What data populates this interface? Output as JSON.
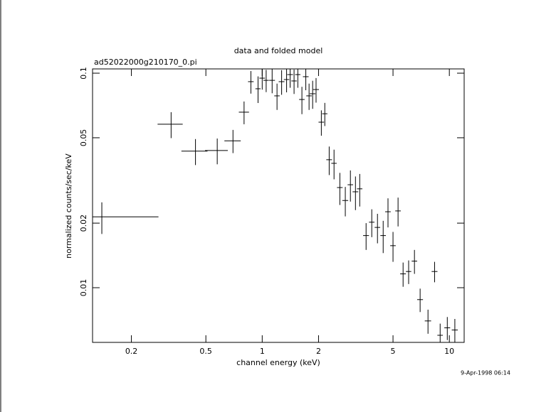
{
  "chart_data": {
    "type": "errorbar",
    "title": "data and folded model",
    "subtitle": "ad52022000g210170_0.pi",
    "x_label": "channel energy (keV)",
    "y_label": "normalized counts/sec/keV",
    "timestamp": "9-Apr-1998 06:14",
    "log_x": true,
    "log_y": true,
    "color": "#000000",
    "xlim": [
      0.124,
      12.0
    ],
    "ylim": [
      0.00556,
      0.1047
    ],
    "xticks": [
      0.2,
      0.5,
      1,
      2,
      5,
      10
    ],
    "yticks": [
      0.01,
      0.02,
      0.05,
      0.1
    ],
    "series": [
      {
        "x": [
          0.139,
          0.326,
          0.44,
          0.575,
          0.698,
          0.8,
          0.87,
          0.95,
          1.0,
          1.05,
          1.13,
          1.2,
          1.27,
          1.35,
          1.41,
          1.48,
          1.55,
          1.63,
          1.71,
          1.78,
          1.86,
          1.94,
          2.07,
          2.16,
          2.28,
          2.42,
          2.6,
          2.78,
          2.96,
          3.15,
          3.32,
          3.59,
          3.85,
          4.13,
          4.43,
          4.7,
          5.0,
          5.32,
          5.66,
          6.06,
          6.51,
          6.98,
          7.69,
          8.34,
          8.93,
          9.75,
          10.7
        ],
        "xerr": [
          0.14,
          0.05,
          0.07,
          0.08,
          0.07,
          0.05,
          0.03,
          0.03,
          0.035,
          0.035,
          0.04,
          0.04,
          0.045,
          0.045,
          0.05,
          0.05,
          0.05,
          0.055,
          0.06,
          0.06,
          0.065,
          0.07,
          0.07,
          0.07,
          0.08,
          0.08,
          0.09,
          0.1,
          0.1,
          0.11,
          0.11,
          0.13,
          0.13,
          0.14,
          0.15,
          0.16,
          0.17,
          0.18,
          0.2,
          0.2,
          0.22,
          0.25,
          0.3,
          0.3,
          0.3,
          0.35,
          0.4
        ],
        "y": [
          0.0214,
          0.0578,
          0.0433,
          0.0436,
          0.0484,
          0.0658,
          0.0913,
          0.0846,
          0.0948,
          0.0926,
          0.0926,
          0.0784,
          0.0913,
          0.0934,
          0.0985,
          0.092,
          0.0985,
          0.0754,
          0.0963,
          0.0784,
          0.0802,
          0.0839,
          0.0591,
          0.0647,
          0.0395,
          0.038,
          0.0293,
          0.0255,
          0.0302,
          0.028,
          0.0289,
          0.0175,
          0.0202,
          0.0191,
          0.0175,
          0.0226,
          0.0157,
          0.0228,
          0.0116,
          0.0119,
          0.0133,
          0.0088,
          0.007,
          0.0119,
          0.006,
          0.0065,
          0.00635
        ],
        "yerr": [
          0.0036,
          0.008,
          0.006,
          0.006,
          0.006,
          0.008,
          0.011,
          0.012,
          0.011,
          0.011,
          0.012,
          0.011,
          0.012,
          0.012,
          0.013,
          0.012,
          0.013,
          0.011,
          0.013,
          0.011,
          0.012,
          0.011,
          0.008,
          0.008,
          0.006,
          0.006,
          0.005,
          0.004,
          0.005,
          0.005,
          0.005,
          0.0025,
          0.003,
          0.003,
          0.003,
          0.0035,
          0.0025,
          0.0035,
          0.0015,
          0.0015,
          0.0017,
          0.0011,
          0.0009,
          0.0013,
          0.0008,
          0.0008,
          0.0008
        ]
      }
    ]
  }
}
